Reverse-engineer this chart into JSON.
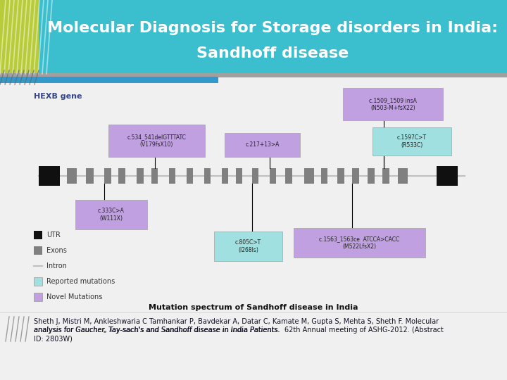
{
  "title_line1": "Molecular Diagnosis for Storage disorders in India:",
  "title_line2": "Sandhoff disease",
  "title_bg": "#3BBFCF",
  "title_side_color": "#B8CC3A",
  "title_color": "white",
  "bg_color": "#F0F0F0",
  "hexb_label": "HEXB gene",
  "intron_color": "#C0C0C0",
  "exon_color": "#808080",
  "utr_color": "#101010",
  "reported_color": "#A0E0E0",
  "novel_color": "#C0A0E0",
  "annotation_text_color": "#222222",
  "caption": "Mutation spectrum of Sandhoff disease in India",
  "footer_line1": "Sheth J, Mistri M, Ankleshwaria C Tamhankar P, Bavdekar A, Datar C, Kamate M, Gupta S, Mehta S, Sheth F. Molecular",
  "footer_line2": "analysis for Gaucher, Tay-sach's and Sandhoff disease in India Patients.  62th Annual meeting of ASHG-2012. (Abstract",
  "footer_line3": "ID: 2803W)",
  "footer_underline": "analysis for Gaucher, Tay-sach's and Sandhoff disease in India Patients."
}
